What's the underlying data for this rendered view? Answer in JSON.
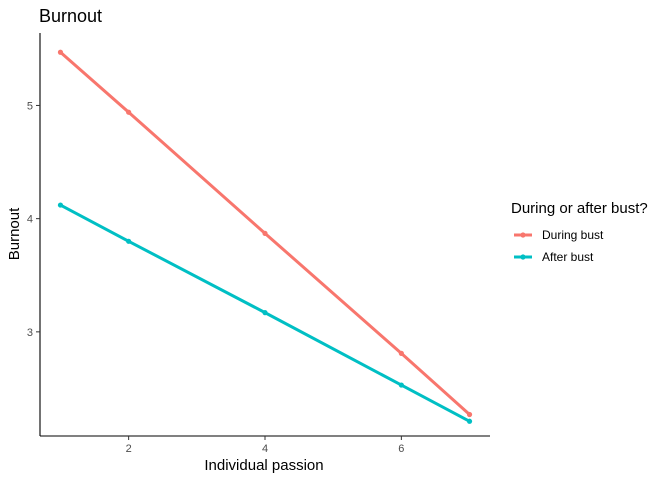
{
  "chart_data": {
    "type": "line",
    "title": "Burnout",
    "xlabel": "Individual passion",
    "ylabel": "Burnout",
    "xlim": [
      0.7,
      7.3
    ],
    "ylim": [
      2.08,
      5.64
    ],
    "xticks": [
      2,
      4,
      6
    ],
    "yticks": [
      3,
      4,
      5
    ],
    "grid": false,
    "legend": {
      "title": "During or after bust?",
      "position": "right"
    },
    "series": [
      {
        "name": "During bust",
        "color": "#F8766D",
        "x": [
          1,
          2,
          4,
          6,
          7
        ],
        "y": [
          5.47,
          4.94,
          3.87,
          2.81,
          2.27
        ]
      },
      {
        "name": "After bust",
        "color": "#00BFC4",
        "x": [
          1,
          2,
          4,
          6,
          7
        ],
        "y": [
          4.12,
          3.8,
          3.17,
          2.53,
          2.21
        ]
      }
    ]
  }
}
